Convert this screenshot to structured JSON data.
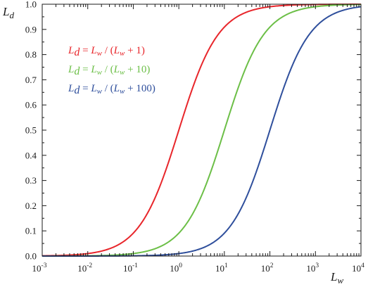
{
  "chart_data": {
    "type": "line",
    "title": "",
    "xlabel": "L",
    "xlabel_sub": "w",
    "ylabel": "L",
    "ylabel_sub": "d",
    "xscale": "log",
    "xlim": [
      0.001,
      10000
    ],
    "ylim": [
      0,
      1
    ],
    "grid": false,
    "x_ticks": [
      {
        "value": 0.001,
        "base": "10",
        "exp": "-3"
      },
      {
        "value": 0.01,
        "base": "10",
        "exp": "-2"
      },
      {
        "value": 0.1,
        "base": "10",
        "exp": "-1"
      },
      {
        "value": 1,
        "base": "10",
        "exp": "0"
      },
      {
        "value": 10,
        "base": "10",
        "exp": "1"
      },
      {
        "value": 100,
        "base": "10",
        "exp": "2"
      },
      {
        "value": 1000,
        "base": "10",
        "exp": "3"
      },
      {
        "value": 10000,
        "base": "10",
        "exp": "4"
      }
    ],
    "y_ticks": [
      "0.0",
      "0.1",
      "0.2",
      "0.3",
      "0.4",
      "0.5",
      "0.6",
      "0.7",
      "0.8",
      "0.9",
      "1.0"
    ],
    "legend_position": "top-left",
    "x": [
      0.001,
      0.01,
      0.1,
      1,
      10,
      100,
      1000,
      10000
    ],
    "series": [
      {
        "name": "Ld = Lw / (Lw + 1)",
        "color": "#e8262b",
        "constant": 1,
        "values": [
          0.001,
          0.0099,
          0.0909,
          0.5,
          0.9091,
          0.9901,
          0.999,
          0.9999
        ],
        "legend": {
          "parts": [
            "L",
            "d",
            " = ",
            "L",
            "w",
            " / (",
            "L",
            "w",
            " + 1)"
          ]
        }
      },
      {
        "name": "Ld = Lw / (Lw + 10)",
        "color": "#6cbf47",
        "constant": 10,
        "values": [
          0.0001,
          0.001,
          0.0099,
          0.0909,
          0.5,
          0.9091,
          0.9901,
          0.999
        ],
        "legend": {
          "parts": [
            "L",
            "d",
            " = ",
            "L",
            "w",
            " / (",
            "L",
            "w",
            " + 10)"
          ]
        }
      },
      {
        "name": "Ld = Lw / (Lw + 100)",
        "color": "#2f4f9c",
        "constant": 100,
        "values": [
          1e-05,
          0.0001,
          0.001,
          0.0099,
          0.0909,
          0.5,
          0.9091,
          0.9901
        ],
        "legend": {
          "parts": [
            "L",
            "d",
            " = ",
            "L",
            "w",
            " / (",
            "L",
            "w",
            " + 100)"
          ]
        }
      }
    ]
  }
}
